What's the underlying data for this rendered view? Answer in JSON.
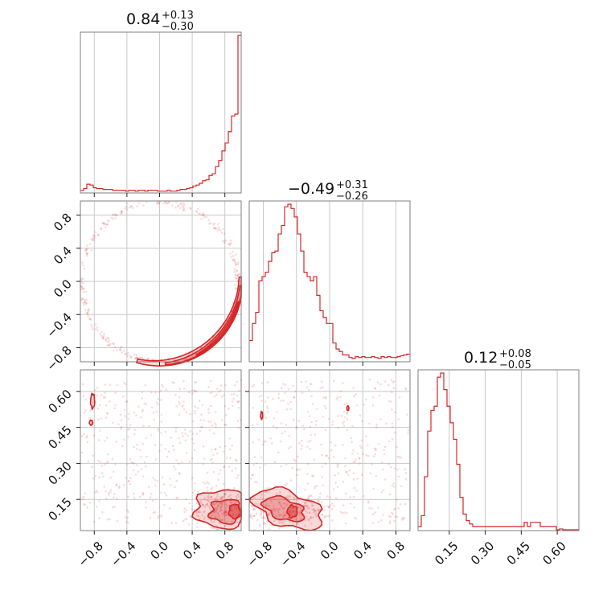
{
  "chart_data": {
    "type": "corner",
    "color": "#d62728",
    "parameters": [
      {
        "median": "0.84",
        "plus": "+0.13",
        "minus": "−0.30",
        "range": [
          -0.97,
          1.0
        ]
      },
      {
        "median": "−0.49",
        "plus": "+0.31",
        "minus": "−0.26",
        "range": [
          -0.97,
          0.97
        ]
      },
      {
        "median": "0.12",
        "plus": "+0.08",
        "minus": "−0.05",
        "range": [
          0.02,
          0.69
        ]
      }
    ],
    "ticks": {
      "p0": {
        "values": [
          -0.8,
          -0.4,
          0.0,
          0.4,
          0.8
        ],
        "labels": [
          "−0.8",
          "−0.4",
          "0.0",
          "0.4",
          "0.8"
        ]
      },
      "p1": {
        "values": [
          -0.8,
          -0.4,
          0.0,
          0.4,
          0.8
        ],
        "labels": [
          "−0.8",
          "−0.4",
          "0.0",
          "0.4",
          "0.8"
        ]
      },
      "p2": {
        "values": [
          0.15,
          0.3,
          0.45,
          0.6
        ],
        "labels": [
          "0.15",
          "0.30",
          "0.45",
          "0.60"
        ]
      }
    },
    "grid": true,
    "histograms": [
      {
        "param": 0,
        "bins": [
          -0.97,
          1.0
        ],
        "counts": [
          3,
          5,
          10,
          9,
          6,
          5,
          5,
          4,
          4,
          4,
          3,
          3,
          3,
          3,
          2,
          3,
          3,
          2,
          3,
          3,
          2,
          3,
          3,
          3,
          2,
          2,
          2,
          3,
          2,
          2,
          3,
          4,
          4,
          5,
          6,
          8,
          9,
          11,
          14,
          15,
          20,
          22,
          30,
          37,
          48,
          57,
          70,
          88,
          90,
          180
        ]
      },
      {
        "param": 1,
        "bins": [
          -0.97,
          0.97
        ],
        "counts": [
          25,
          45,
          58,
          95,
          100,
          105,
          118,
          128,
          130,
          150,
          160,
          182,
          185,
          180,
          170,
          150,
          130,
          105,
          100,
          95,
          100,
          78,
          60,
          52,
          45,
          45,
          22,
          15,
          12,
          8,
          8,
          5,
          4,
          6,
          5,
          6,
          5,
          5,
          6,
          5,
          4,
          6,
          5,
          6,
          5,
          5,
          6,
          7,
          8,
          9
        ]
      },
      {
        "param": 2,
        "bins": [
          0.02,
          0.69
        ],
        "counts": [
          5,
          18,
          65,
          120,
          145,
          150,
          185,
          190,
          170,
          150,
          130,
          110,
          80,
          40,
          20,
          12,
          8,
          5,
          5,
          5,
          5,
          5,
          5,
          5,
          5,
          5,
          5,
          5,
          5,
          5,
          5,
          5,
          5,
          10,
          5,
          10,
          10,
          10,
          5,
          5,
          5,
          5,
          5,
          1,
          2,
          1,
          1,
          1,
          1,
          1
        ]
      }
    ],
    "pairs": [
      {
        "x": 0,
        "y": 1
      },
      {
        "x": 0,
        "y": 2
      },
      {
        "x": 1,
        "y": 2
      }
    ]
  }
}
